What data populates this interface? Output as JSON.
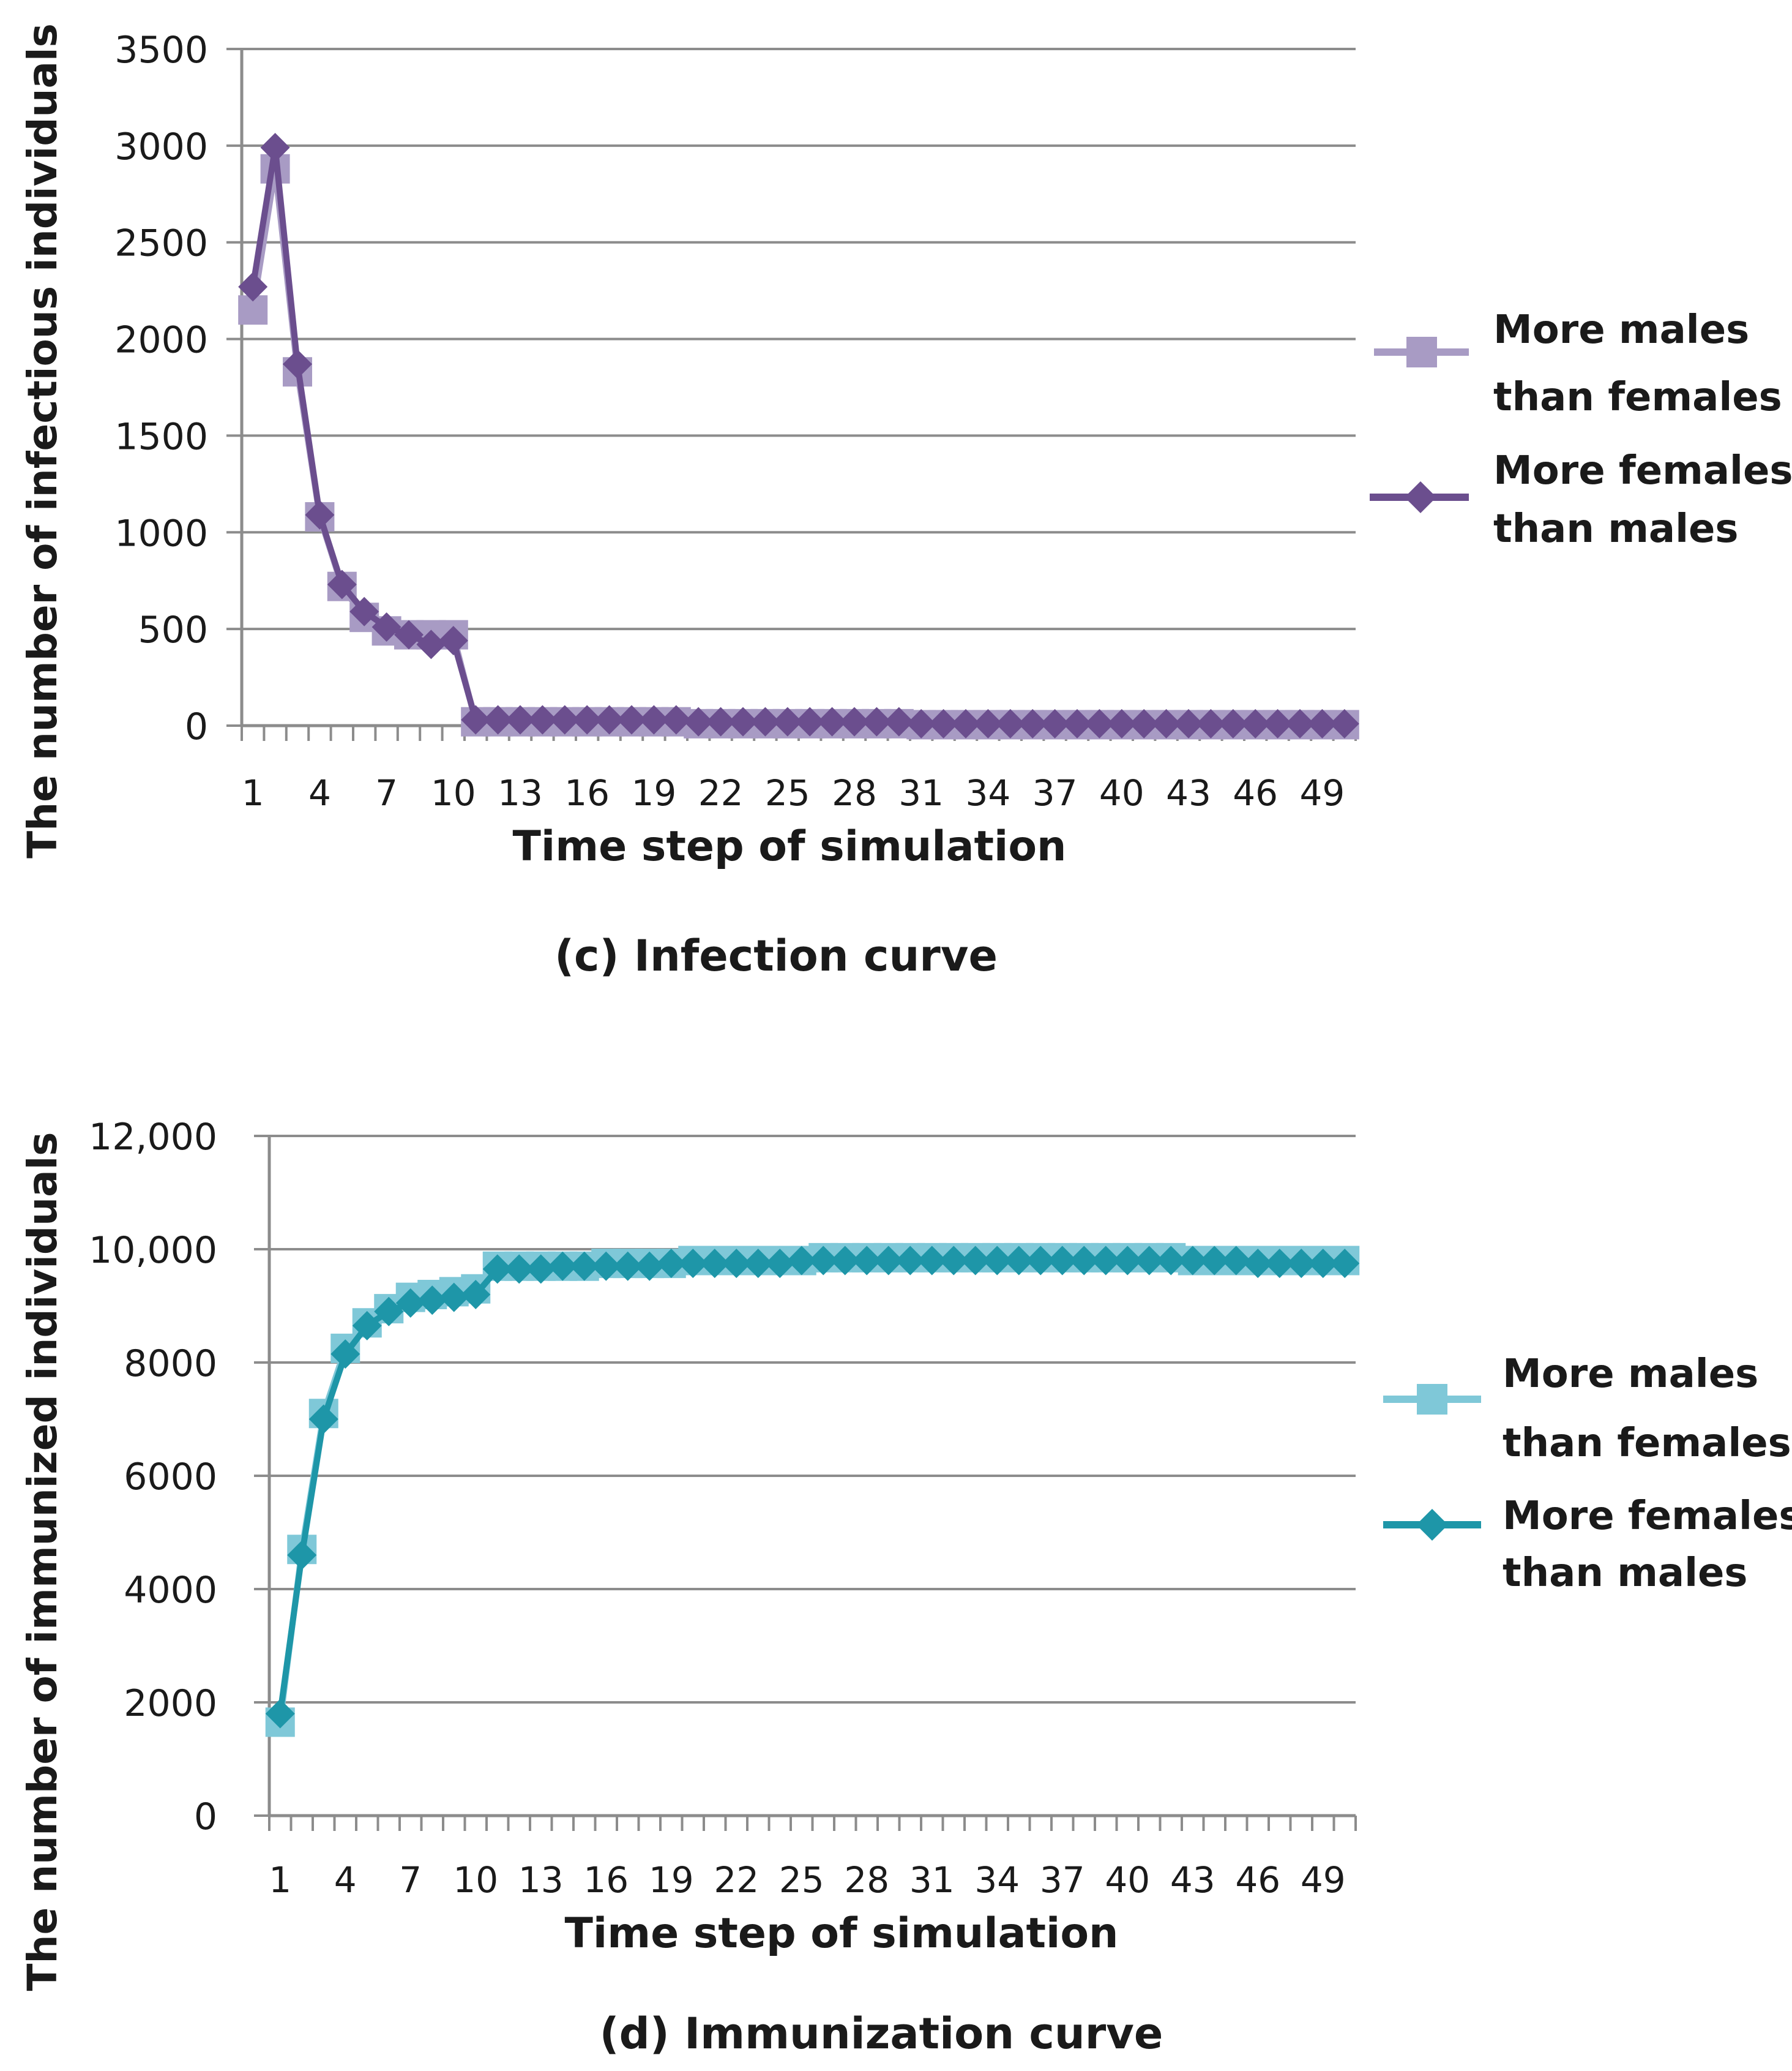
{
  "chart_data": [
    {
      "type": "line",
      "panel": "c",
      "caption": "(c) Infection curve",
      "xlabel": "Time step of simulation",
      "ylabel": "The number of infectious individuals",
      "ylim": [
        0,
        3500
      ],
      "yticks": [
        0,
        500,
        1000,
        1500,
        2000,
        2500,
        3000,
        3500
      ],
      "ytick_labels": [
        "0",
        "500",
        "1000",
        "1500",
        "2000",
        "2500",
        "3000",
        "3500"
      ],
      "x": [
        1,
        2,
        3,
        4,
        5,
        6,
        7,
        8,
        9,
        10,
        11,
        12,
        13,
        14,
        15,
        16,
        17,
        18,
        19,
        20,
        21,
        22,
        23,
        24,
        25,
        26,
        27,
        28,
        29,
        30,
        31,
        32,
        33,
        34,
        35,
        36,
        37,
        38,
        39,
        40,
        41,
        42,
        43,
        44,
        45,
        46,
        47,
        48,
        49,
        50
      ],
      "xtick_labels": [
        "1",
        "4",
        "7",
        "10",
        "13",
        "16",
        "19",
        "22",
        "25",
        "28",
        "31",
        "34",
        "37",
        "40",
        "43",
        "46",
        "49"
      ],
      "grid": true,
      "legend_position": "right",
      "series": [
        {
          "name": "More males than females",
          "legend_line1": "More males",
          "legend_line2": "than females",
          "marker": "square",
          "color": "#a89bc4",
          "values": [
            2150,
            2880,
            1830,
            1080,
            720,
            560,
            490,
            470,
            470,
            470,
            20,
            20,
            20,
            20,
            20,
            20,
            20,
            20,
            20,
            20,
            10,
            10,
            10,
            10,
            10,
            10,
            10,
            10,
            10,
            10,
            5,
            5,
            5,
            5,
            5,
            5,
            5,
            5,
            5,
            5,
            5,
            5,
            5,
            5,
            5,
            5,
            5,
            5,
            5,
            5
          ]
        },
        {
          "name": "More females than males",
          "legend_line1": "More females",
          "legend_line2": "than males",
          "marker": "diamond",
          "color": "#6b4e8e",
          "values": [
            2270,
            2990,
            1870,
            1090,
            730,
            590,
            510,
            470,
            420,
            440,
            30,
            30,
            30,
            30,
            30,
            30,
            30,
            30,
            30,
            30,
            20,
            20,
            20,
            20,
            20,
            20,
            20,
            20,
            20,
            20,
            10,
            10,
            10,
            10,
            10,
            10,
            10,
            10,
            10,
            10,
            10,
            10,
            10,
            10,
            10,
            10,
            10,
            10,
            10,
            10
          ]
        }
      ]
    },
    {
      "type": "line",
      "panel": "d",
      "caption": "(d) Immunization curve",
      "xlabel": "Time step of simulation",
      "ylabel": "The number of immunized individuals",
      "ylim": [
        0,
        12000
      ],
      "yticks": [
        0,
        2000,
        4000,
        6000,
        8000,
        10000,
        12000
      ],
      "ytick_labels": [
        "0",
        "2000",
        "4000",
        "6000",
        "8000",
        "10,000",
        "12,000"
      ],
      "x": [
        1,
        2,
        3,
        4,
        5,
        6,
        7,
        8,
        9,
        10,
        11,
        12,
        13,
        14,
        15,
        16,
        17,
        18,
        19,
        20,
        21,
        22,
        23,
        24,
        25,
        26,
        27,
        28,
        29,
        30,
        31,
        32,
        33,
        34,
        35,
        36,
        37,
        38,
        39,
        40,
        41,
        42,
        43,
        44,
        45,
        46,
        47,
        48,
        49,
        50
      ],
      "xtick_labels": [
        "1",
        "4",
        "7",
        "10",
        "13",
        "16",
        "19",
        "22",
        "25",
        "28",
        "31",
        "34",
        "37",
        "40",
        "43",
        "46",
        "49"
      ],
      "grid": true,
      "legend_position": "right",
      "series": [
        {
          "name": "More males than females",
          "legend_line1": "More males",
          "legend_line2": "than females",
          "marker": "square",
          "color": "#7fc8d8",
          "values": [
            1650,
            4700,
            7100,
            8250,
            8700,
            8950,
            9150,
            9200,
            9250,
            9300,
            9700,
            9700,
            9700,
            9700,
            9700,
            9750,
            9750,
            9750,
            9750,
            9800,
            9800,
            9800,
            9800,
            9800,
            9800,
            9850,
            9850,
            9850,
            9850,
            9850,
            9850,
            9850,
            9850,
            9850,
            9850,
            9850,
            9850,
            9850,
            9850,
            9850,
            9850,
            9850,
            9800,
            9800,
            9800,
            9800,
            9800,
            9800,
            9800,
            9800
          ]
        },
        {
          "name": "More females than males",
          "legend_line1": "More females",
          "legend_line2": "than males",
          "marker": "diamond",
          "color": "#1e96a8",
          "values": [
            1800,
            4600,
            7000,
            8150,
            8650,
            8900,
            9050,
            9100,
            9150,
            9200,
            9650,
            9650,
            9650,
            9700,
            9700,
            9700,
            9700,
            9700,
            9750,
            9750,
            9750,
            9750,
            9750,
            9750,
            9800,
            9800,
            9800,
            9800,
            9800,
            9800,
            9800,
            9800,
            9800,
            9800,
            9800,
            9800,
            9800,
            9800,
            9800,
            9800,
            9800,
            9800,
            9800,
            9800,
            9800,
            9750,
            9750,
            9750,
            9750,
            9750
          ]
        }
      ]
    }
  ]
}
